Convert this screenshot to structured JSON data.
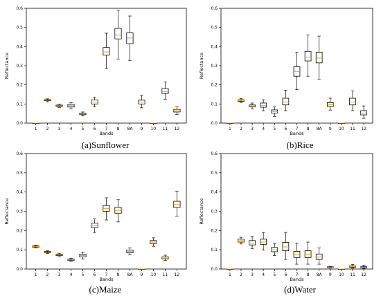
{
  "chart_data": [
    {
      "type": "box",
      "caption": "(a)Sunflower",
      "xlabel": "Bands",
      "ylabel": "Reflectance",
      "ylim": [
        0,
        0.6
      ],
      "yticks": [
        "0.0",
        "0.1",
        "0.2",
        "0.3",
        "0.4",
        "0.5",
        "0.6"
      ],
      "categories": [
        "1",
        "2",
        "3",
        "4",
        "5",
        "6",
        "7",
        "8",
        "8A",
        "9",
        "10",
        "11",
        "12"
      ],
      "boxes": [
        {
          "whislo": 0.0,
          "q1": 0.0,
          "med": 0.0,
          "q3": 0.0,
          "whishi": 0.0
        },
        {
          "whislo": 0.112,
          "q1": 0.117,
          "med": 0.12,
          "q3": 0.123,
          "whishi": 0.127
        },
        {
          "whislo": 0.082,
          "q1": 0.087,
          "med": 0.09,
          "q3": 0.094,
          "whishi": 0.099
        },
        {
          "whislo": 0.075,
          "q1": 0.084,
          "med": 0.091,
          "q3": 0.098,
          "whishi": 0.107
        },
        {
          "whislo": 0.038,
          "q1": 0.044,
          "med": 0.048,
          "q3": 0.052,
          "whishi": 0.058
        },
        {
          "whislo": 0.085,
          "q1": 0.1,
          "med": 0.11,
          "q3": 0.121,
          "whishi": 0.135
        },
        {
          "whislo": 0.285,
          "q1": 0.355,
          "med": 0.372,
          "q3": 0.395,
          "whishi": 0.47
        },
        {
          "whislo": 0.335,
          "q1": 0.44,
          "med": 0.46,
          "q3": 0.495,
          "whishi": 0.59
        },
        {
          "whislo": 0.328,
          "q1": 0.415,
          "med": 0.445,
          "q3": 0.472,
          "whishi": 0.56
        },
        {
          "whislo": 0.08,
          "q1": 0.1,
          "med": 0.11,
          "q3": 0.12,
          "whishi": 0.145
        },
        {
          "whislo": 0.0,
          "q1": 0.0,
          "med": 0.0,
          "q3": 0.0,
          "whishi": 0.0
        },
        {
          "whislo": 0.125,
          "q1": 0.155,
          "med": 0.165,
          "q3": 0.18,
          "whishi": 0.215
        },
        {
          "whislo": 0.045,
          "q1": 0.058,
          "med": 0.065,
          "q3": 0.072,
          "whishi": 0.085
        }
      ]
    },
    {
      "type": "box",
      "caption": "(b)Rice",
      "xlabel": "Bands",
      "ylabel": "Reflectance",
      "ylim": [
        0,
        0.6
      ],
      "yticks": [
        "0.0",
        "0.1",
        "0.2",
        "0.3",
        "0.4",
        "0.5",
        "0.6"
      ],
      "categories": [
        "1",
        "2",
        "3",
        "4",
        "5",
        "6",
        "7",
        "8",
        "8A",
        "9",
        "10",
        "11",
        "12"
      ],
      "boxes": [
        {
          "whislo": 0.0,
          "q1": 0.0,
          "med": 0.0,
          "q3": 0.0,
          "whishi": 0.0
        },
        {
          "whislo": 0.108,
          "q1": 0.114,
          "med": 0.118,
          "q3": 0.122,
          "whishi": 0.128
        },
        {
          "whislo": 0.075,
          "q1": 0.085,
          "med": 0.09,
          "q3": 0.095,
          "whishi": 0.105
        },
        {
          "whislo": 0.065,
          "q1": 0.083,
          "med": 0.093,
          "q3": 0.105,
          "whishi": 0.122
        },
        {
          "whislo": 0.035,
          "q1": 0.052,
          "med": 0.06,
          "q3": 0.069,
          "whishi": 0.085
        },
        {
          "whislo": 0.065,
          "q1": 0.095,
          "med": 0.11,
          "q3": 0.13,
          "whishi": 0.172
        },
        {
          "whislo": 0.175,
          "q1": 0.245,
          "med": 0.27,
          "q3": 0.295,
          "whishi": 0.37
        },
        {
          "whislo": 0.245,
          "q1": 0.325,
          "med": 0.345,
          "q3": 0.375,
          "whishi": 0.46
        },
        {
          "whislo": 0.23,
          "q1": 0.315,
          "med": 0.34,
          "q3": 0.37,
          "whishi": 0.455
        },
        {
          "whislo": 0.068,
          "q1": 0.087,
          "med": 0.096,
          "q3": 0.107,
          "whishi": 0.13
        },
        {
          "whislo": 0.0,
          "q1": 0.0,
          "med": 0.0,
          "q3": 0.0,
          "whishi": 0.0
        },
        {
          "whislo": 0.065,
          "q1": 0.095,
          "med": 0.11,
          "q3": 0.13,
          "whishi": 0.168
        },
        {
          "whislo": 0.025,
          "q1": 0.043,
          "med": 0.052,
          "q3": 0.065,
          "whishi": 0.09
        }
      ]
    },
    {
      "type": "box",
      "caption": "(c)Maize",
      "xlabel": "Bands",
      "ylabel": "Reflectance",
      "ylim": [
        0,
        0.6
      ],
      "yticks": [
        "0.0",
        "0.1",
        "0.2",
        "0.3",
        "0.4",
        "0.5",
        "0.6"
      ],
      "categories": [
        "1",
        "2",
        "3",
        "4",
        "5",
        "6",
        "7",
        "8",
        "8A",
        "9",
        "10",
        "11",
        "12"
      ],
      "boxes": [
        {
          "whislo": 0.11,
          "q1": 0.114,
          "med": 0.117,
          "q3": 0.12,
          "whishi": 0.124
        },
        {
          "whislo": 0.081,
          "q1": 0.085,
          "med": 0.088,
          "q3": 0.091,
          "whishi": 0.095
        },
        {
          "whislo": 0.064,
          "q1": 0.07,
          "med": 0.073,
          "q3": 0.077,
          "whishi": 0.082
        },
        {
          "whislo": 0.04,
          "q1": 0.045,
          "med": 0.048,
          "q3": 0.051,
          "whishi": 0.056
        },
        {
          "whislo": 0.052,
          "q1": 0.063,
          "med": 0.07,
          "q3": 0.077,
          "whishi": 0.088
        },
        {
          "whislo": 0.19,
          "q1": 0.215,
          "med": 0.225,
          "q3": 0.238,
          "whishi": 0.26
        },
        {
          "whislo": 0.255,
          "q1": 0.3,
          "med": 0.315,
          "q3": 0.33,
          "whishi": 0.37
        },
        {
          "whislo": 0.245,
          "q1": 0.29,
          "med": 0.305,
          "q3": 0.32,
          "whishi": 0.36
        },
        {
          "whislo": 0.073,
          "q1": 0.084,
          "med": 0.091,
          "q3": 0.098,
          "whishi": 0.11
        },
        {
          "whislo": 0.0,
          "q1": 0.0,
          "med": 0.0,
          "q3": 0.0,
          "whishi": 0.0
        },
        {
          "whislo": 0.118,
          "q1": 0.132,
          "med": 0.14,
          "q3": 0.148,
          "whishi": 0.162
        },
        {
          "whislo": 0.045,
          "q1": 0.052,
          "med": 0.057,
          "q3": 0.063,
          "whishi": 0.072
        },
        {
          "whislo": 0.275,
          "q1": 0.32,
          "med": 0.335,
          "q3": 0.352,
          "whishi": 0.405
        }
      ]
    },
    {
      "type": "box",
      "caption": "(d)Water",
      "xlabel": "Bands",
      "ylabel": "Reflectance",
      "ylim": [
        0,
        0.6
      ],
      "yticks": [
        "0.0",
        "0.1",
        "0.2",
        "0.3",
        "0.4",
        "0.5",
        "0.6"
      ],
      "categories": [
        "1",
        "2",
        "3",
        "4",
        "5",
        "6",
        "7",
        "8",
        "8A",
        "9",
        "10",
        "11",
        "12"
      ],
      "boxes": [
        {
          "whislo": 0.0,
          "q1": 0.0,
          "med": 0.0,
          "q3": 0.0,
          "whishi": 0.0
        },
        {
          "whislo": 0.13,
          "q1": 0.14,
          "med": 0.148,
          "q3": 0.155,
          "whishi": 0.165
        },
        {
          "whislo": 0.105,
          "q1": 0.125,
          "med": 0.135,
          "q3": 0.148,
          "whishi": 0.17
        },
        {
          "whislo": 0.098,
          "q1": 0.128,
          "med": 0.14,
          "q3": 0.155,
          "whishi": 0.19
        },
        {
          "whislo": 0.07,
          "q1": 0.09,
          "med": 0.1,
          "q3": 0.112,
          "whishi": 0.132
        },
        {
          "whislo": 0.05,
          "q1": 0.095,
          "med": 0.115,
          "q3": 0.138,
          "whishi": 0.19
        },
        {
          "whislo": 0.025,
          "q1": 0.06,
          "med": 0.075,
          "q3": 0.092,
          "whishi": 0.135
        },
        {
          "whislo": 0.025,
          "q1": 0.06,
          "med": 0.077,
          "q3": 0.095,
          "whishi": 0.14
        },
        {
          "whislo": 0.025,
          "q1": 0.05,
          "med": 0.062,
          "q3": 0.078,
          "whishi": 0.11
        },
        {
          "whislo": 0.005,
          "q1": 0.008,
          "med": 0.01,
          "q3": 0.012,
          "whishi": 0.014
        },
        {
          "whislo": 0.0,
          "q1": 0.0,
          "med": 0.0,
          "q3": 0.0,
          "whishi": 0.0
        },
        {
          "whislo": 0.004,
          "q1": 0.009,
          "med": 0.012,
          "q3": 0.016,
          "whishi": 0.024
        },
        {
          "whislo": 0.002,
          "q1": 0.006,
          "med": 0.009,
          "q3": 0.012,
          "whishi": 0.02
        }
      ]
    }
  ],
  "colors": {
    "box_edge": "#000000",
    "median": "#f0a000",
    "background": "#ffffff"
  }
}
